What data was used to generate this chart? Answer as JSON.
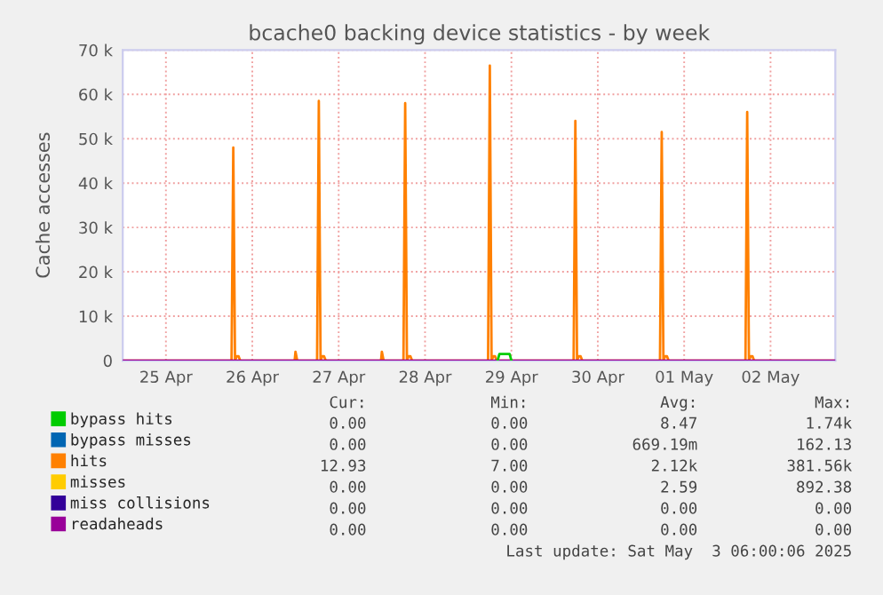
{
  "chart_data": {
    "type": "line",
    "title": "bcache0 backing device statistics - by week",
    "ylabel": "Cache accesses",
    "xlim": [
      "2025-04-25T00:00",
      "2025-05-03T06:00"
    ],
    "xticks": [
      {
        "value": "2025-04-25T12:00",
        "label": "25 Apr"
      },
      {
        "value": "2025-04-26T12:00",
        "label": "26 Apr"
      },
      {
        "value": "2025-04-27T12:00",
        "label": "27 Apr"
      },
      {
        "value": "2025-04-28T12:00",
        "label": "28 Apr"
      },
      {
        "value": "2025-04-29T12:00",
        "label": "29 Apr"
      },
      {
        "value": "2025-04-30T12:00",
        "label": "30 Apr"
      },
      {
        "value": "2025-05-01T12:00",
        "label": "01 May"
      },
      {
        "value": "2025-05-02T12:00",
        "label": "02 May"
      }
    ],
    "ylim": [
      0,
      70000
    ],
    "yticks": [
      {
        "value": 0,
        "label": "0"
      },
      {
        "value": 10000,
        "label": "10 k"
      },
      {
        "value": 20000,
        "label": "20 k"
      },
      {
        "value": 30000,
        "label": "30 k"
      },
      {
        "value": 40000,
        "label": "40 k"
      },
      {
        "value": 50000,
        "label": "50 k"
      },
      {
        "value": 60000,
        "label": "60 k"
      },
      {
        "value": 70000,
        "label": "70 k"
      }
    ],
    "grid": true,
    "legend": "bottom",
    "marker": "none",
    "line_style": "solid",
    "series": [
      {
        "name": "bypass hits",
        "color": "#00cc00",
        "x": [
          "2025-04-29T08:10",
          "2025-04-29T08:40",
          "2025-04-29T11:30",
          "2025-04-29T12:00"
        ],
        "values": [
          0,
          1500,
          1500,
          0
        ]
      },
      {
        "name": "bypass misses",
        "color": "#0066b3"
      },
      {
        "name": "hits",
        "color": "#ff8000",
        "x": [
          "2025-04-25T00:00",
          "2025-04-26T06:14",
          "2025-04-26T06:43",
          "2025-04-26T07:12",
          "2025-04-26T07:41",
          "2025-04-26T08:10",
          "2025-04-26T08:38",
          "2025-04-26T23:46",
          "2025-04-27T00:00",
          "2025-04-27T00:29",
          "2025-04-27T06:00",
          "2025-04-27T06:29",
          "2025-04-27T06:58",
          "2025-04-27T07:26",
          "2025-04-27T07:55",
          "2025-04-27T08:24",
          "2025-04-27T23:46",
          "2025-04-28T00:00",
          "2025-04-28T00:29",
          "2025-04-28T06:00",
          "2025-04-28T06:29",
          "2025-04-28T06:58",
          "2025-04-28T07:26",
          "2025-04-28T07:55",
          "2025-04-28T08:24",
          "2025-04-29T05:31",
          "2025-04-29T06:00",
          "2025-04-29T06:29",
          "2025-04-29T06:58",
          "2025-04-29T07:26",
          "2025-04-29T07:55",
          "2025-04-30T05:17",
          "2025-04-30T05:46",
          "2025-04-30T06:14",
          "2025-04-30T06:43",
          "2025-04-30T07:12",
          "2025-04-30T07:41",
          "2025-05-01T05:17",
          "2025-05-01T05:46",
          "2025-05-01T06:14",
          "2025-05-01T06:43",
          "2025-05-01T07:12",
          "2025-05-01T07:41",
          "2025-05-02T05:02",
          "2025-05-02T05:31",
          "2025-05-02T06:00",
          "2025-05-02T06:29",
          "2025-05-02T06:58",
          "2025-05-02T07:26",
          "2025-05-03T06:00"
        ],
        "values": [
          0,
          0,
          48000,
          0,
          1000,
          1000,
          0,
          0,
          2000,
          0,
          0,
          58500,
          0,
          1000,
          1000,
          0,
          0,
          2000,
          0,
          0,
          58000,
          0,
          1000,
          1000,
          0,
          0,
          66500,
          0,
          1000,
          1000,
          0,
          0,
          54000,
          0,
          1000,
          1000,
          0,
          0,
          51500,
          0,
          1000,
          1000,
          0,
          0,
          56000,
          0,
          1000,
          1000,
          0,
          0
        ]
      },
      {
        "name": "misses",
        "color": "#ffcc00"
      },
      {
        "name": "miss collisions",
        "color": "#330099"
      },
      {
        "name": "readaheads",
        "color": "#990099",
        "x": [
          "2025-04-25T00:00",
          "2025-05-03T06:00"
        ],
        "values": [
          0,
          0
        ]
      }
    ],
    "annotations": [
      "Cur:",
      "Min:",
      "Avg:",
      "Max:",
      "0.00",
      "0.00",
      "8.47",
      "1.74k",
      "0.00",
      "0.00",
      "669.19m",
      "162.13",
      "12.93",
      "7.00",
      "2.12k",
      "381.56k",
      "0.00",
      "0.00",
      "2.59",
      "892.38",
      "0.00",
      "0.00",
      "0.00",
      "0.00",
      "0.00",
      "0.00",
      "0.00",
      "0.00",
      "Last update: Sat May  3 06:00:06 2025"
    ]
  }
}
